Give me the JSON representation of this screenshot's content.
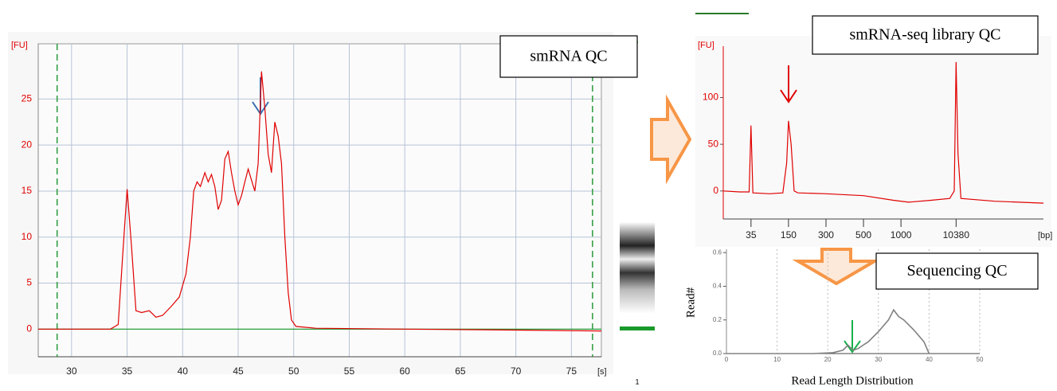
{
  "chart_data": [
    {
      "type": "line",
      "title": "smRNA QC",
      "y_unit": "[FU]",
      "x_unit": "[s]",
      "lane_label": "1",
      "x": [
        27,
        33.5,
        34.2,
        34.6,
        35,
        35.4,
        35.8,
        36.3,
        37,
        37.6,
        38.2,
        39,
        39.7,
        40.3,
        40.7,
        41,
        41.3,
        41.6,
        42,
        42.3,
        42.6,
        42.9,
        43.2,
        43.5,
        43.8,
        44.1,
        44.4,
        44.7,
        45,
        45.3,
        45.6,
        45.9,
        46.2,
        46.5,
        46.8,
        47.1,
        47.4,
        47.7,
        48,
        48.3,
        48.6,
        48.9,
        49.2,
        49.5,
        49.8,
        50.2,
        52,
        60,
        70,
        77.7
      ],
      "series": [
        {
          "color": "#e00000",
          "values": [
            0,
            0,
            0.5,
            8,
            15.2,
            9,
            2,
            1.8,
            2,
            1.3,
            1.5,
            2.5,
            3.5,
            6,
            10,
            15,
            16,
            15.5,
            17,
            16,
            16.8,
            15.5,
            13,
            14,
            18.5,
            19.3,
            17,
            15,
            13.5,
            14.5,
            16,
            17.4,
            16.2,
            15,
            18,
            28,
            24,
            19,
            17,
            22.5,
            21,
            18,
            10,
            4,
            1,
            0.3,
            0.1,
            0,
            -0.1,
            -0.2
          ]
        }
      ],
      "xlim": [
        27,
        77.7
      ],
      "ylim": [
        -3,
        31
      ],
      "xticks": [
        30,
        35,
        40,
        45,
        50,
        55,
        60,
        65,
        70,
        75
      ],
      "yticks": [
        0,
        5,
        10,
        15,
        20,
        25
      ],
      "markers_x": [
        28.7,
        76.9
      ],
      "grid": true
    },
    {
      "type": "line",
      "title": "smRNA-seq library QC",
      "y_unit": "[FU]",
      "x_unit": "[bp]",
      "x": [
        0.26,
        0.7,
        0.95,
        1.0,
        1.05,
        1.5,
        1.85,
        1.95,
        2.0,
        2.07,
        2.15,
        2.25,
        3,
        4,
        4.8,
        5.2,
        5.8,
        6.3,
        6.42,
        6.47,
        6.52,
        6.6,
        7.5,
        8.8
      ],
      "series": [
        {
          "color": "#e00000",
          "values": [
            0,
            -1,
            -1,
            70,
            -2,
            -3,
            -2,
            30,
            75,
            50,
            0,
            -2,
            -3,
            -5,
            -10,
            -12,
            -10,
            -8,
            0,
            138,
            40,
            -8,
            -11,
            -13
          ]
        }
      ],
      "xlim": [
        0.26,
        8.8
      ],
      "ylim": [
        -30,
        155
      ],
      "xticks": [
        {
          "value": 1,
          "label": "35"
        },
        {
          "value": 2,
          "label": "150"
        },
        {
          "value": 3,
          "label": "300"
        },
        {
          "value": 4,
          "label": "500"
        },
        {
          "value": 5,
          "label": "1000"
        },
        {
          "value": 6.47,
          "label": "10380"
        }
      ],
      "yticks": [
        0,
        50,
        100
      ],
      "grid": false
    },
    {
      "type": "line",
      "title": "Sequencing QC",
      "y_label": "Read#",
      "x_label": "Read Length Distribution",
      "x": [
        17,
        21,
        23,
        24,
        25,
        26,
        27,
        28,
        30,
        32,
        33,
        34,
        35,
        37,
        39,
        40
      ],
      "series": [
        {
          "color": "#808080",
          "values": [
            0,
            0.005,
            0.02,
            0.05,
            0.02,
            0.03,
            0.05,
            0.07,
            0.13,
            0.2,
            0.26,
            0.22,
            0.2,
            0.14,
            0.07,
            0
          ]
        }
      ],
      "xlim": [
        0,
        50
      ],
      "ylim": [
        0,
        0.62
      ],
      "xticks": [
        0,
        10,
        20,
        30,
        40,
        50
      ],
      "yticks": [
        {
          "value": 0,
          "label": "0.0"
        },
        {
          "value": 0.2,
          "label": "0.2"
        },
        {
          "value": 0.4,
          "label": "0.4"
        },
        {
          "value": 0.6,
          "label": "0.6"
        }
      ],
      "grid": true
    }
  ]
}
